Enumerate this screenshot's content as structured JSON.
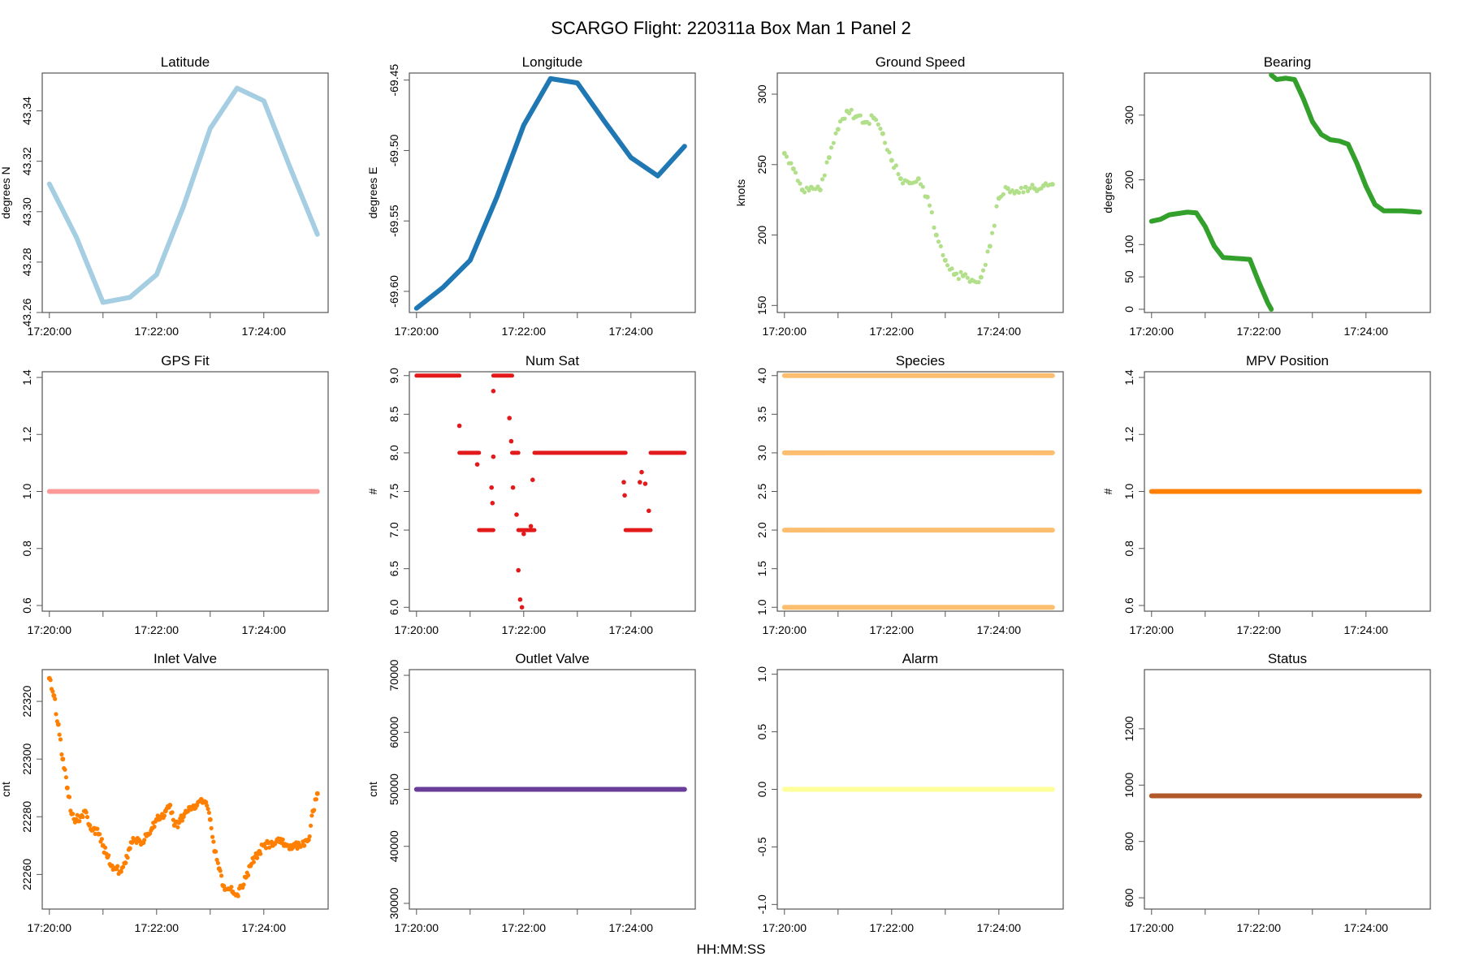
{
  "figure": {
    "title": "SCARGO Flight: 220311a  Box Man 1 Panel 2",
    "xlabel": "HH:MM:SS"
  },
  "chart_data": [
    {
      "type": "line",
      "title": "Latitude",
      "ylabel": "degrees N",
      "color": "#a6cee3",
      "ylim": [
        43.26,
        43.355
      ],
      "yticks": [
        "43.26",
        "43.28",
        "43.30",
        "43.32",
        "43.34"
      ],
      "ytick_values": [
        43.26,
        43.28,
        43.3,
        43.32,
        43.34
      ],
      "x": [
        0,
        30,
        60,
        90,
        120,
        150,
        180,
        210,
        240,
        270,
        300
      ],
      "values": [
        43.311,
        43.29,
        43.264,
        43.266,
        43.275,
        43.302,
        43.333,
        43.349,
        43.344,
        43.317,
        43.291
      ]
    },
    {
      "type": "line",
      "title": "Longitude",
      "ylabel": "degrees E",
      "color": "#1f78b4",
      "ylim": [
        -69.615,
        -69.445
      ],
      "yticks": [
        "-69.60",
        "-69.55",
        "-69.50",
        "-69.45"
      ],
      "ytick_values": [
        -69.6,
        -69.55,
        -69.5,
        -69.45
      ],
      "x": [
        0,
        30,
        60,
        90,
        120,
        150,
        180,
        210,
        240,
        270,
        300
      ],
      "values": [
        -69.612,
        -69.597,
        -69.578,
        -69.533,
        -69.482,
        -69.449,
        -69.452,
        -69.479,
        -69.505,
        -69.518,
        -69.497
      ]
    },
    {
      "type": "scatter",
      "title": "Ground Speed",
      "ylabel": "knots",
      "color": "#b2df8a",
      "ylim": [
        145,
        315
      ],
      "yticks": [
        "150",
        "200",
        "250",
        "300"
      ],
      "ytick_values": [
        150,
        200,
        250,
        300
      ],
      "x": [
        0,
        10,
        20,
        30,
        40,
        50,
        60,
        70,
        80,
        90,
        100,
        110,
        120,
        130,
        140,
        150,
        160,
        170,
        180,
        190,
        200,
        210,
        220,
        230,
        240,
        250,
        260,
        270,
        280,
        290,
        300
      ],
      "values": [
        258,
        247,
        232,
        234,
        232,
        255,
        275,
        288,
        284,
        280,
        283,
        272,
        253,
        240,
        237,
        240,
        227,
        200,
        182,
        172,
        171,
        168,
        170,
        192,
        226,
        233,
        231,
        234,
        233,
        235,
        236
      ]
    },
    {
      "type": "line",
      "title": "Bearing",
      "ylabel": "degrees",
      "color": "#33a02c",
      "ylim": [
        -5,
        365
      ],
      "yticks": [
        "0",
        "50",
        "100",
        "200",
        "300"
      ],
      "ytick_values": [
        0,
        50,
        100,
        200,
        300
      ],
      "segments": [
        {
          "x": [
            0,
            10,
            20,
            30,
            40,
            50,
            60,
            70,
            80,
            90,
            100,
            110,
            120,
            130,
            134
          ],
          "values": [
            136,
            139,
            146,
            148,
            150,
            149,
            128,
            98,
            80,
            79,
            78,
            77,
            42,
            10,
            0
          ]
        },
        {
          "x": [
            134,
            140,
            150,
            160,
            170,
            180,
            190,
            200,
            210,
            220,
            230,
            240,
            250,
            260,
            270,
            280,
            290,
            300
          ],
          "values": [
            362,
            355,
            357,
            355,
            325,
            290,
            270,
            262,
            260,
            255,
            225,
            190,
            162,
            152,
            152,
            152,
            151,
            150
          ]
        }
      ]
    },
    {
      "type": "line",
      "title": "GPS Fit",
      "ylabel": "",
      "color": "#fb9a99",
      "ylim": [
        0.58,
        1.42
      ],
      "yticks": [
        "0.6",
        "0.8",
        "1.0",
        "1.2",
        "1.4"
      ],
      "ytick_values": [
        0.6,
        0.8,
        1.0,
        1.2,
        1.4
      ],
      "x": [
        0,
        300
      ],
      "values": [
        1.0,
        1.0
      ]
    },
    {
      "type": "scatter",
      "title": "Num Sat",
      "ylabel": "#",
      "color": "#e31a1c",
      "ylim": [
        5.95,
        9.05
      ],
      "yticks": [
        "6.0",
        "6.5",
        "7.0",
        "7.5",
        "8.0",
        "8.5",
        "9.0"
      ],
      "ytick_values": [
        6.0,
        6.5,
        7.0,
        7.5,
        8.0,
        8.5,
        9.0
      ],
      "runs": [
        {
          "x": [
            0,
            48
          ],
          "y": 9
        },
        {
          "x": [
            48,
            70
          ],
          "y": 8
        },
        {
          "x": [
            70,
            86
          ],
          "y": 7
        },
        {
          "x": [
            86,
            107
          ],
          "y": 9
        },
        {
          "x": [
            107,
            114
          ],
          "y": 8
        },
        {
          "x": [
            114,
            132
          ],
          "y": 7
        },
        {
          "x": [
            132,
            234
          ],
          "y": 8
        },
        {
          "x": [
            234,
            262
          ],
          "y": 7
        },
        {
          "x": [
            262,
            300
          ],
          "y": 8
        }
      ],
      "points": [
        {
          "x": 48,
          "y": 8.35
        },
        {
          "x": 68,
          "y": 7.85
        },
        {
          "x": 84,
          "y": 7.55
        },
        {
          "x": 85,
          "y": 7.35
        },
        {
          "x": 86,
          "y": 8.8
        },
        {
          "x": 86,
          "y": 7.95
        },
        {
          "x": 104,
          "y": 8.45
        },
        {
          "x": 106,
          "y": 8.15
        },
        {
          "x": 108,
          "y": 7.55
        },
        {
          "x": 112,
          "y": 7.2
        },
        {
          "x": 114,
          "y": 6.48
        },
        {
          "x": 116,
          "y": 6.1
        },
        {
          "x": 118,
          "y": 6.0
        },
        {
          "x": 120,
          "y": 6.95
        },
        {
          "x": 128,
          "y": 7.05
        },
        {
          "x": 130,
          "y": 7.65
        },
        {
          "x": 232,
          "y": 7.62
        },
        {
          "x": 233,
          "y": 7.45
        },
        {
          "x": 250,
          "y": 7.62
        },
        {
          "x": 252,
          "y": 7.75
        },
        {
          "x": 256,
          "y": 7.6
        },
        {
          "x": 260,
          "y": 7.25
        }
      ]
    },
    {
      "type": "line",
      "title": "Species",
      "ylabel": "",
      "color": "#fdbf6f",
      "ylim": [
        0.95,
        4.05
      ],
      "yticks": [
        "1.0",
        "1.5",
        "2.0",
        "2.5",
        "3.0",
        "3.5",
        "4.0"
      ],
      "ytick_values": [
        1.0,
        1.5,
        2.0,
        2.5,
        3.0,
        3.5,
        4.0
      ],
      "levels": [
        1,
        2,
        3,
        4
      ],
      "x": [
        0,
        300
      ]
    },
    {
      "type": "line",
      "title": "MPV Position",
      "ylabel": "#",
      "color": "#ff7f00",
      "ylim": [
        0.58,
        1.42
      ],
      "yticks": [
        "0.6",
        "0.8",
        "1.0",
        "1.2",
        "1.4"
      ],
      "ytick_values": [
        0.6,
        0.8,
        1.0,
        1.2,
        1.4
      ],
      "x": [
        0,
        300
      ],
      "values": [
        1.0,
        1.0
      ]
    },
    {
      "type": "scatter",
      "title": "Inlet Valve",
      "ylabel": "cnt",
      "color": "#ff7f00",
      "ylim": [
        22248,
        22331
      ],
      "yticks": [
        "22260",
        "22280",
        "22300",
        "22320"
      ],
      "ytick_values": [
        22260,
        22280,
        22300,
        22320
      ],
      "x": [
        0,
        5,
        10,
        15,
        20,
        25,
        30,
        35,
        40,
        45,
        50,
        55,
        60,
        65,
        70,
        75,
        80,
        85,
        90,
        95,
        100,
        105,
        110,
        115,
        120,
        125,
        130,
        135,
        140,
        145,
        150,
        155,
        160,
        165,
        170,
        175,
        180,
        185,
        190,
        195,
        200,
        205,
        210,
        215,
        220,
        225,
        230,
        235,
        240,
        245,
        250,
        255,
        260,
        265,
        270,
        275,
        280,
        285,
        290,
        295,
        300
      ],
      "values": [
        22328,
        22322,
        22312,
        22300,
        22290,
        22281,
        22279,
        22280,
        22282,
        22277,
        22276,
        22274,
        22270,
        22266,
        22263,
        22262,
        22261,
        22264,
        22269,
        22272,
        22272,
        22271,
        22274,
        22276,
        22279,
        22280,
        22282,
        22284,
        22277,
        22278,
        22280,
        22282,
        22283,
        22284,
        22286,
        22285,
        22279,
        22268,
        22262,
        22256,
        22255,
        22254,
        22253,
        22256,
        22259,
        22263,
        22266,
        22268,
        22270,
        22271,
        22270,
        22272,
        22271,
        22270,
        22270,
        22270,
        22270,
        22270,
        22272,
        22282,
        22288
      ]
    },
    {
      "type": "line",
      "title": "Outlet Valve",
      "ylabel": "cnt",
      "color": "#6a3d9a",
      "ylim": [
        29000,
        71000
      ],
      "yticks": [
        "30000",
        "40000",
        "50000",
        "60000",
        "70000"
      ],
      "ytick_values": [
        30000,
        40000,
        50000,
        60000,
        70000
      ],
      "x": [
        0,
        300
      ],
      "values": [
        50000,
        50000
      ]
    },
    {
      "type": "line",
      "title": "Alarm",
      "ylabel": "",
      "color": "#ffff99",
      "ylim": [
        -1.04,
        1.04
      ],
      "yticks": [
        "-1.0",
        "-0.5",
        "0.0",
        "0.5",
        "1.0"
      ],
      "ytick_values": [
        -1.0,
        -0.5,
        0.0,
        0.5,
        1.0
      ],
      "x": [
        0,
        300
      ],
      "values": [
        0,
        0
      ]
    },
    {
      "type": "line",
      "title": "Status",
      "ylabel": "",
      "color": "#b15928",
      "ylim": [
        560,
        1410
      ],
      "yticks": [
        "600",
        "800",
        "1000",
        "1200"
      ],
      "ytick_values": [
        600,
        800,
        1000,
        1200
      ],
      "x": [
        0,
        300
      ],
      "values": [
        962,
        962
      ]
    }
  ],
  "xaxis": {
    "xlim": [
      -8,
      312
    ],
    "tick_seconds": [
      0,
      60,
      120,
      180,
      240
    ],
    "tick_labels": [
      "17:20:00",
      "",
      "17:22:00",
      "",
      "17:24:00"
    ]
  }
}
